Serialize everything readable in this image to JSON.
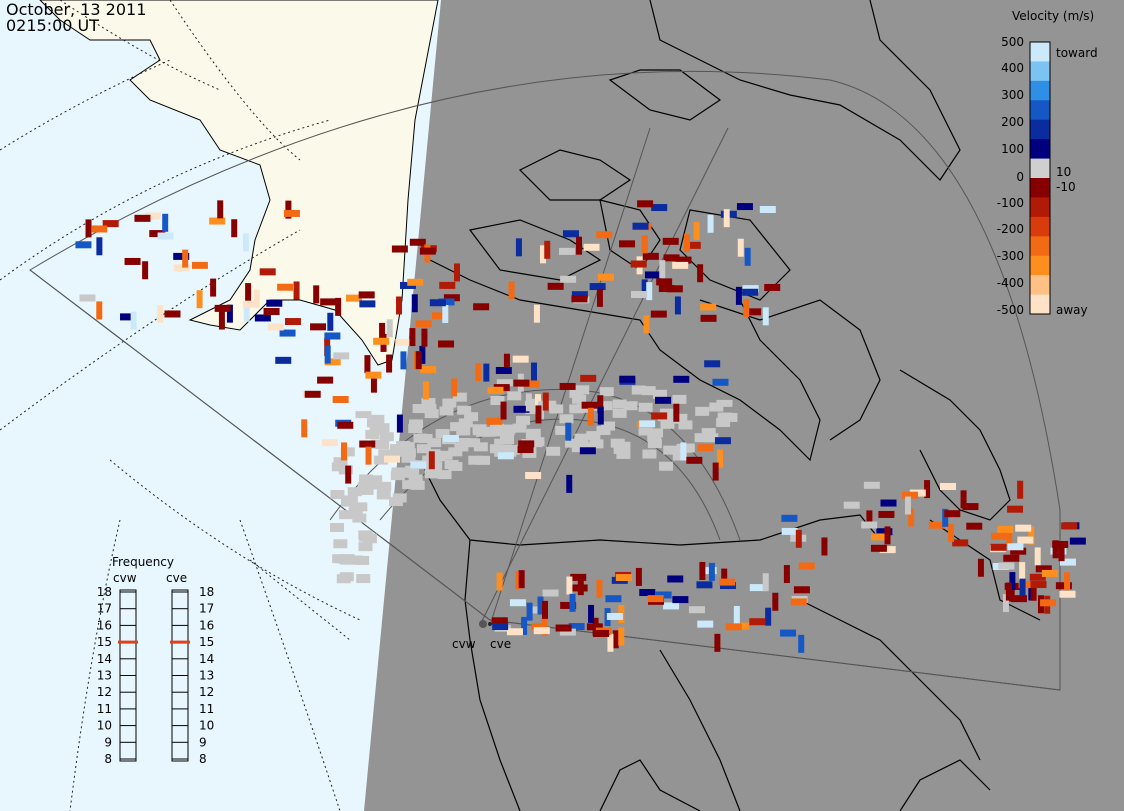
{
  "header": {
    "date": "October, 13 2011",
    "time": "0215:00 UT"
  },
  "colorbar": {
    "title": "Velocity (m/s)",
    "ticks": [
      "500",
      "400",
      "300",
      "200",
      "100",
      "10",
      "0",
      "-10",
      "-100",
      "-200",
      "-300",
      "-400",
      "-500"
    ],
    "toward_label": "toward",
    "away_label": "away",
    "colors": [
      "#fde2c8",
      "#fec084",
      "#fe8f1f",
      "#f26b14",
      "#d83b0c",
      "#b01a06",
      "#870000",
      "#cfcfcf",
      "#00007e",
      "#0b2c9e",
      "#1557c4",
      "#2f8ee6",
      "#7cc2f2",
      "#cbe9fb"
    ]
  },
  "frequency": {
    "title": "Frequency",
    "radars": [
      "cvw",
      "cve"
    ],
    "ticks": [
      "18",
      "17",
      "16",
      "15",
      "14",
      "13",
      "12",
      "11",
      "10",
      "9",
      "8"
    ],
    "selected": {
      "cvw": 15,
      "cve": 15
    },
    "marker_color": "#e0401c"
  },
  "sites": [
    "cvw",
    "cve"
  ],
  "map": {
    "day_color": "#e8f7fe",
    "land_day_color": "#fbfaea",
    "night_color": "#949494",
    "fov_color": "#555555"
  }
}
